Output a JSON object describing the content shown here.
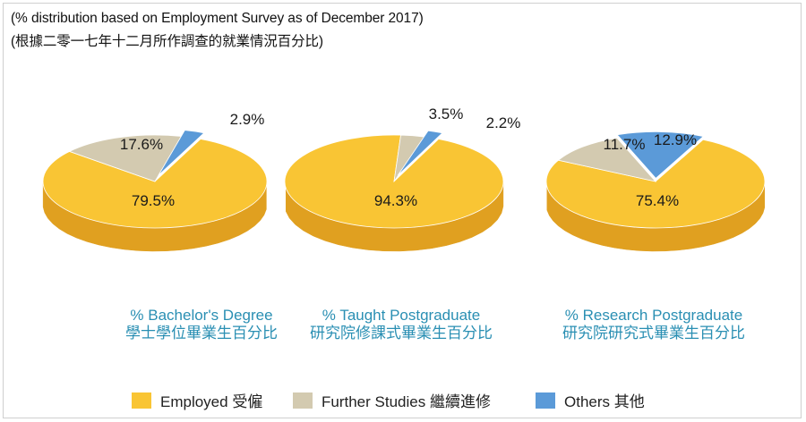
{
  "header": {
    "line1": "(% distribution based on Employment Survey as of December 2017)",
    "line2": "(根據二零一七年十二月所作調查的就業情況百分比)"
  },
  "chart_data": [
    {
      "type": "pie",
      "title_en": "% Bachelor's Degree",
      "title_zh": "學士學位畢業生百分比",
      "slices": [
        {
          "label": "Employed",
          "value": 79.5,
          "text": "79.5%",
          "color": "#f9c534",
          "side": "#e0a020"
        },
        {
          "label": "Further Studies",
          "value": 17.6,
          "text": "17.6%",
          "color": "#d3cab0",
          "side": "#a89e82"
        },
        {
          "label": "Others",
          "value": 2.9,
          "text": "2.9%",
          "color": "#5b9ad8",
          "side": "#3a76b4"
        }
      ]
    },
    {
      "type": "pie",
      "title_en": "% Taught Postgraduate",
      "title_zh": "研究院修課式畢業生百分比",
      "slices": [
        {
          "label": "Employed",
          "value": 94.3,
          "text": "94.3%",
          "color": "#f9c534",
          "side": "#e0a020"
        },
        {
          "label": "Further Studies",
          "value": 3.5,
          "text": "3.5%",
          "color": "#d3cab0",
          "side": "#a89e82"
        },
        {
          "label": "Others",
          "value": 2.2,
          "text": "2.2%",
          "color": "#5b9ad8",
          "side": "#3a76b4"
        }
      ]
    },
    {
      "type": "pie",
      "title_en": "% Research Postgraduate",
      "title_zh": "研究院研究式畢業生百分比",
      "slices": [
        {
          "label": "Employed",
          "value": 75.4,
          "text": "75.4%",
          "color": "#f9c534",
          "side": "#e0a020"
        },
        {
          "label": "Further Studies",
          "value": 11.7,
          "text": "11.7%",
          "color": "#d3cab0",
          "side": "#a89e82"
        },
        {
          "label": "Others",
          "value": 12.9,
          "text": "12.9%",
          "color": "#5b9ad8",
          "side": "#3a76b4"
        }
      ]
    }
  ],
  "legend": [
    {
      "label": "Employed 受僱",
      "color": "#f9c534"
    },
    {
      "label": "Further Studies 繼續進修",
      "color": "#d3cab0"
    },
    {
      "label": "Others 其他",
      "color": "#5b9ad8"
    }
  ]
}
